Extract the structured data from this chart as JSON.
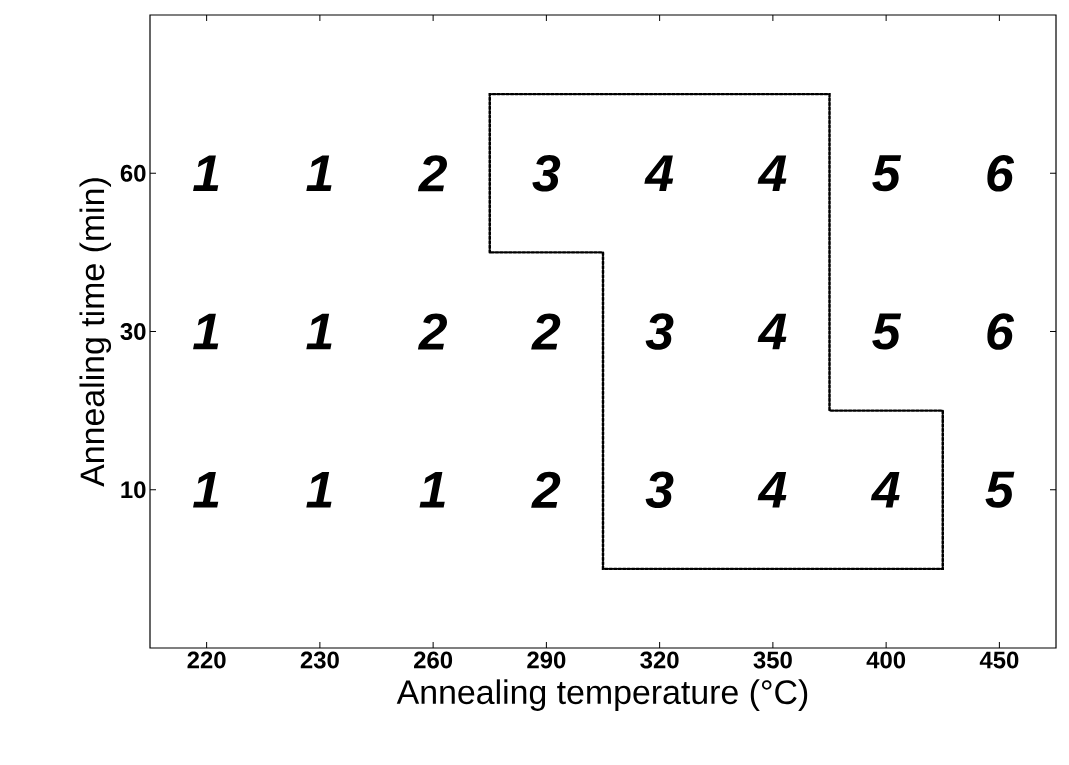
{
  "chart_data": {
    "type": "heatmap",
    "xlabel": "Annealing temperature (°C)",
    "ylabel": "Annealing time (min)",
    "categories": [
      "220",
      "230",
      "260",
      "290",
      "320",
      "350",
      "400",
      "450"
    ],
    "y_categories": [
      "60",
      "30",
      "10"
    ],
    "cells": [
      [
        1,
        1,
        2,
        3,
        4,
        4,
        5,
        6
      ],
      [
        1,
        1,
        2,
        2,
        3,
        4,
        5,
        6
      ],
      [
        1,
        1,
        1,
        2,
        3,
        4,
        4,
        5
      ]
    ],
    "data_labels": true
  }
}
